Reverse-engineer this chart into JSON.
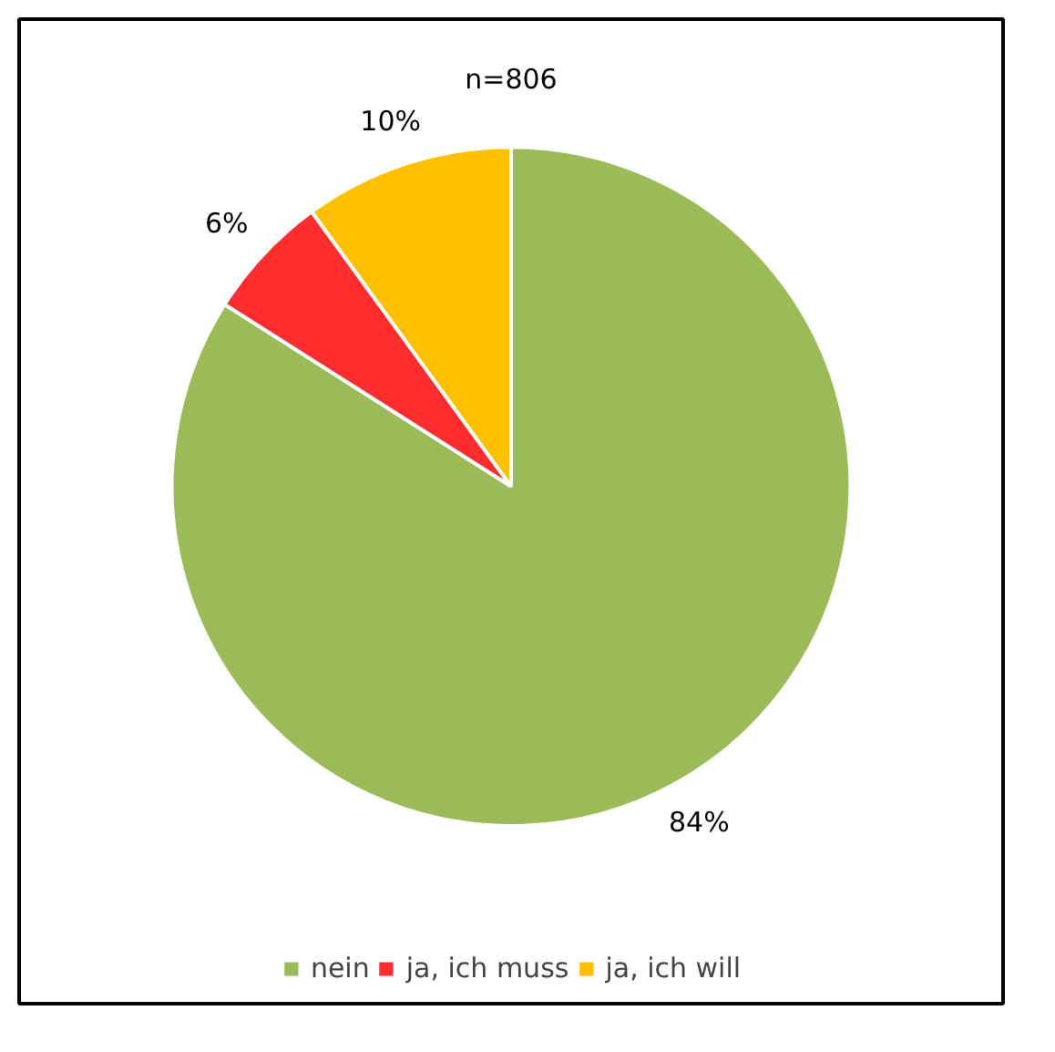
{
  "chart_data": {
    "type": "pie",
    "title": "n=806",
    "categories": [
      "nein",
      "ja, ich muss",
      "ja, ich will"
    ],
    "values": [
      84,
      6,
      10
    ],
    "colors": [
      "#9bbb59",
      "#ff2d2d",
      "#ffc000"
    ],
    "value_labels": [
      "84%",
      "6%",
      "10%"
    ],
    "legend": "bottom"
  }
}
